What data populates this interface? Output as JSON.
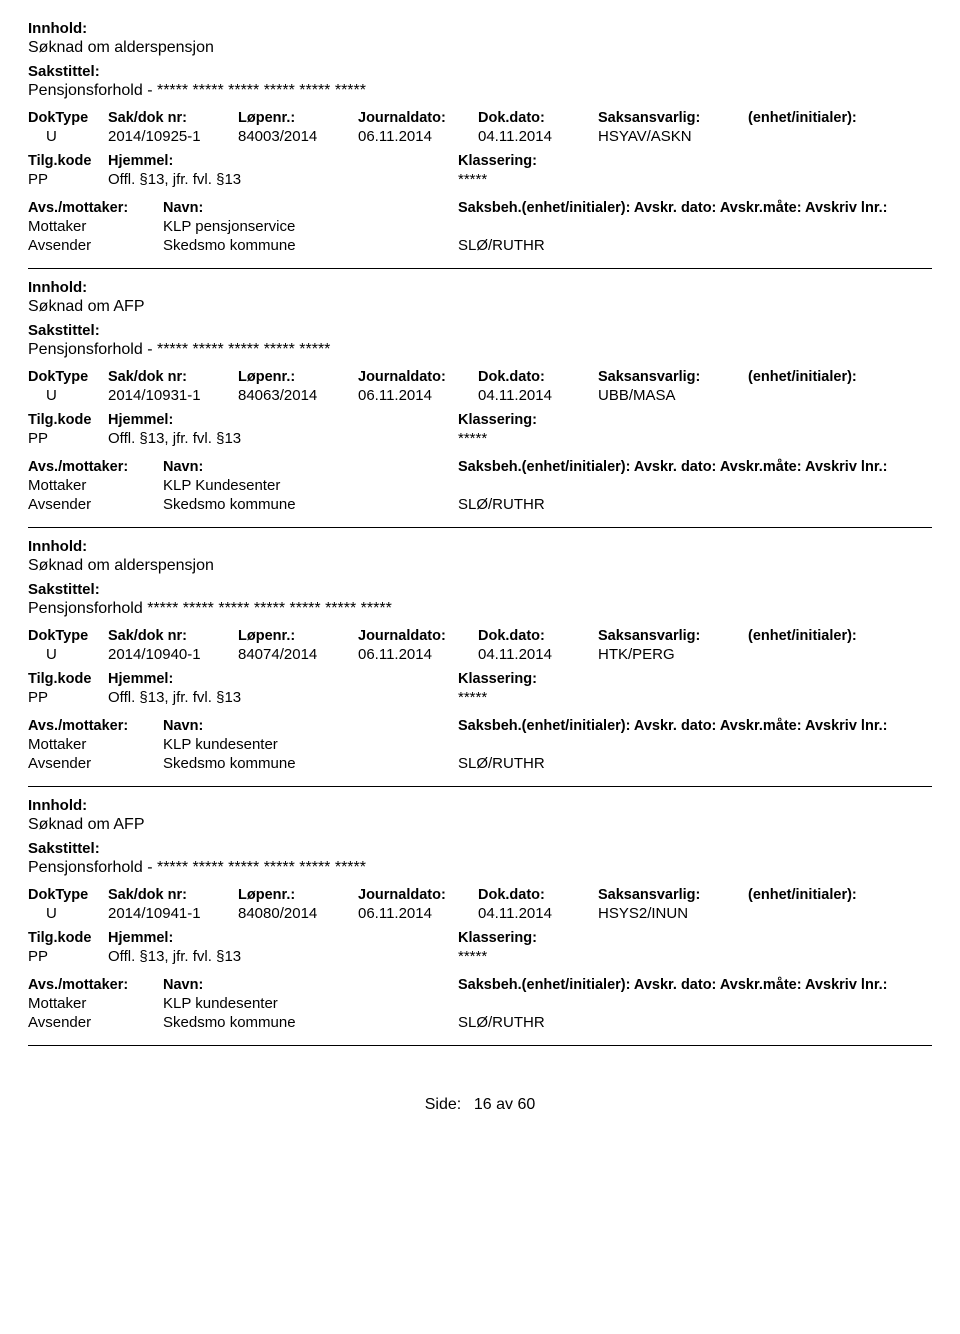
{
  "labels": {
    "innhold": "Innhold:",
    "sakstittel": "Sakstittel:",
    "doktype": "DokType",
    "sakdok": "Sak/dok nr:",
    "lopenr": "Løpenr.:",
    "journaldato": "Journaldato:",
    "dokdato": "Dok.dato:",
    "saksansvarlig": "Saksansvarlig:",
    "enhet": "(enhet/initialer):",
    "tilgkode": "Tilg.kode",
    "hjemmel": "Hjemmel:",
    "klassering": "Klassering:",
    "avs_mottaker": "Avs./mottaker:",
    "navn": "Navn:",
    "saksbeh_line": "Saksbeh.(enhet/initialer): Avskr. dato:  Avskr.måte:  Avskriv lnr.:",
    "mottaker": "Mottaker",
    "avsender": "Avsender",
    "side": "Side:",
    "av": "av"
  },
  "footer": {
    "page": "16",
    "total": "60"
  },
  "records": [
    {
      "innhold": "Søknad om alderspensjon",
      "sakstittel": "Pensjonsforhold - ***** ***** ***** ***** ***** *****",
      "doktype": "U",
      "sakdok": "2014/10925-1",
      "lopenr": "84003/2014",
      "journaldato": "06.11.2014",
      "dokdato": "04.11.2014",
      "saksansvarlig": "HSYAV/ASKN",
      "tilgkode": "PP",
      "hjemmel": "Offl. §13, jfr. fvl. §13",
      "klassering": "*****",
      "mottaker_navn": "KLP pensjonservice",
      "avsender_navn": "Skedsmo kommune",
      "avsender_saksbeh": "SLØ/RUTHR"
    },
    {
      "innhold": "Søknad om AFP",
      "sakstittel": "Pensjonsforhold - ***** ***** ***** ***** *****",
      "doktype": "U",
      "sakdok": "2014/10931-1",
      "lopenr": "84063/2014",
      "journaldato": "06.11.2014",
      "dokdato": "04.11.2014",
      "saksansvarlig": "UBB/MASA",
      "tilgkode": "PP",
      "hjemmel": "Offl. §13, jfr. fvl. §13",
      "klassering": "*****",
      "mottaker_navn": "KLP Kundesenter",
      "avsender_navn": "Skedsmo kommune",
      "avsender_saksbeh": "SLØ/RUTHR"
    },
    {
      "innhold": "Søknad om alderspensjon",
      "sakstittel": "Pensjonsforhold ***** ***** ***** ***** ***** ***** *****",
      "doktype": "U",
      "sakdok": "2014/10940-1",
      "lopenr": "84074/2014",
      "journaldato": "06.11.2014",
      "dokdato": "04.11.2014",
      "saksansvarlig": "HTK/PERG",
      "tilgkode": "PP",
      "hjemmel": "Offl. §13, jfr. fvl. §13",
      "klassering": "*****",
      "mottaker_navn": "KLP kundesenter",
      "avsender_navn": "Skedsmo kommune",
      "avsender_saksbeh": "SLØ/RUTHR"
    },
    {
      "innhold": "Søknad om AFP",
      "sakstittel": "Pensjonsforhold - ***** ***** ***** ***** ***** *****",
      "doktype": "U",
      "sakdok": "2014/10941-1",
      "lopenr": "84080/2014",
      "journaldato": "06.11.2014",
      "dokdato": "04.11.2014",
      "saksansvarlig": "HSYS2/INUN",
      "tilgkode": "PP",
      "hjemmel": "Offl. §13, jfr. fvl. §13",
      "klassering": "*****",
      "mottaker_navn": "KLP kundesenter",
      "avsender_navn": "Skedsmo kommune",
      "avsender_saksbeh": "SLØ/RUTHR"
    }
  ]
}
